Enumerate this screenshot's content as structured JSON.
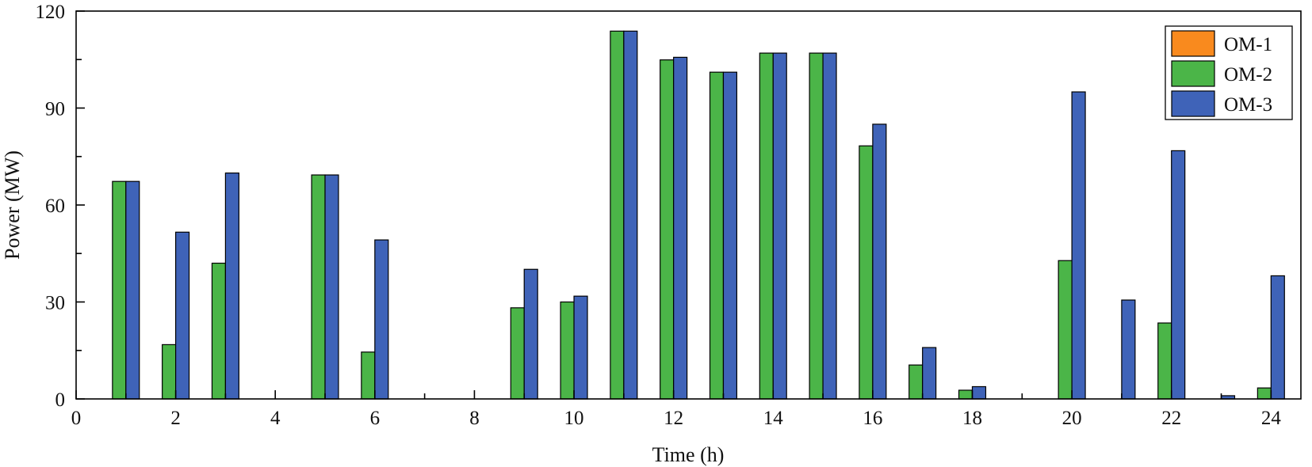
{
  "chart_data": {
    "type": "bar",
    "title": "",
    "xlabel": "Time (h)",
    "ylabel": "Power (MW)",
    "xlim": [
      0,
      24.6
    ],
    "ylim": [
      0,
      120
    ],
    "x_ticks": [
      0,
      2,
      4,
      6,
      8,
      10,
      12,
      14,
      16,
      18,
      20,
      22,
      24
    ],
    "y_ticks": [
      0,
      30,
      60,
      90,
      120
    ],
    "x": [
      1,
      2,
      3,
      4,
      5,
      6,
      7,
      8,
      9,
      10,
      11,
      12,
      13,
      14,
      15,
      16,
      17,
      18,
      19,
      20,
      21,
      22,
      23,
      24
    ],
    "series": [
      {
        "name": "OM-1",
        "color": "#f98a1e",
        "values": [
          0,
          0,
          0,
          0,
          0,
          0,
          0,
          0,
          0,
          0,
          0,
          0,
          0,
          0,
          0,
          0,
          0,
          0,
          0,
          0,
          0,
          0,
          0,
          0
        ]
      },
      {
        "name": "OM-2",
        "color": "#4bb548",
        "values": [
          67.3,
          16.8,
          42,
          0,
          69.3,
          14.5,
          0,
          0,
          28.2,
          30,
          113.8,
          104.9,
          101.1,
          107,
          107,
          78.3,
          10.5,
          2.7,
          0,
          42.8,
          0,
          23.5,
          0,
          3.4
        ]
      },
      {
        "name": "OM-3",
        "color": "#3f63b8",
        "values": [
          67.3,
          51.6,
          69.9,
          0,
          69.3,
          49.2,
          0,
          0,
          40.1,
          31.8,
          113.8,
          105.7,
          101.1,
          107,
          107,
          85,
          15.9,
          3.8,
          0,
          95,
          30.6,
          76.8,
          1,
          38.1
        ]
      }
    ],
    "legend_position": "top-right",
    "grid": false
  }
}
